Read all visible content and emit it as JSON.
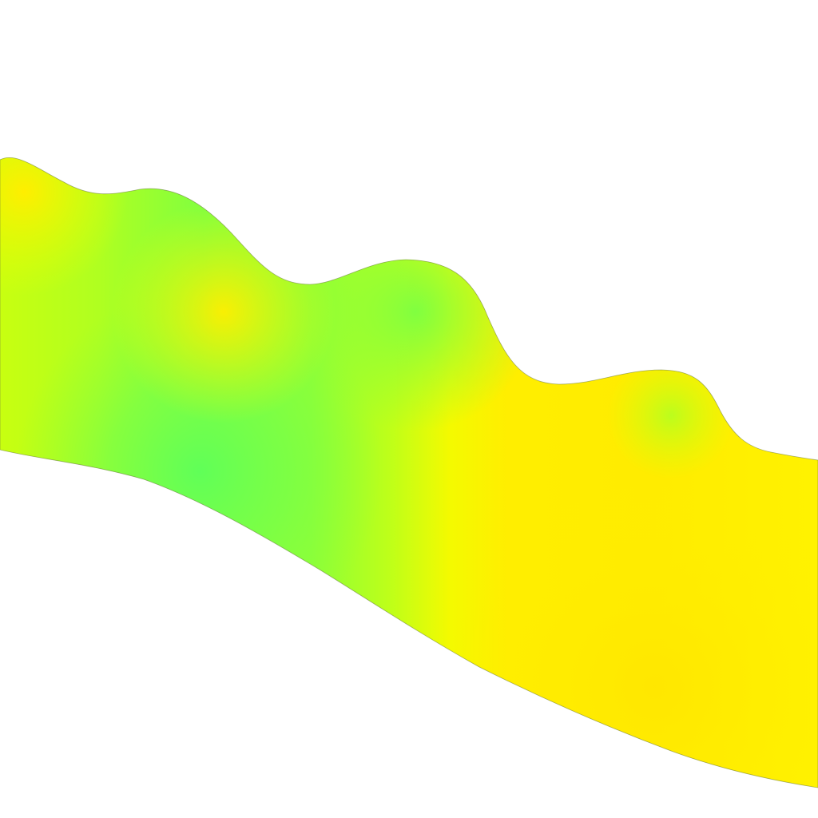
{
  "scene": {
    "background_color": "#ffffff",
    "colormap": [
      "#66ff55",
      "#88ff40",
      "#bbff20",
      "#eeff00",
      "#ffee00",
      "#ffe800"
    ],
    "outline_color": "#6a7a40"
  }
}
